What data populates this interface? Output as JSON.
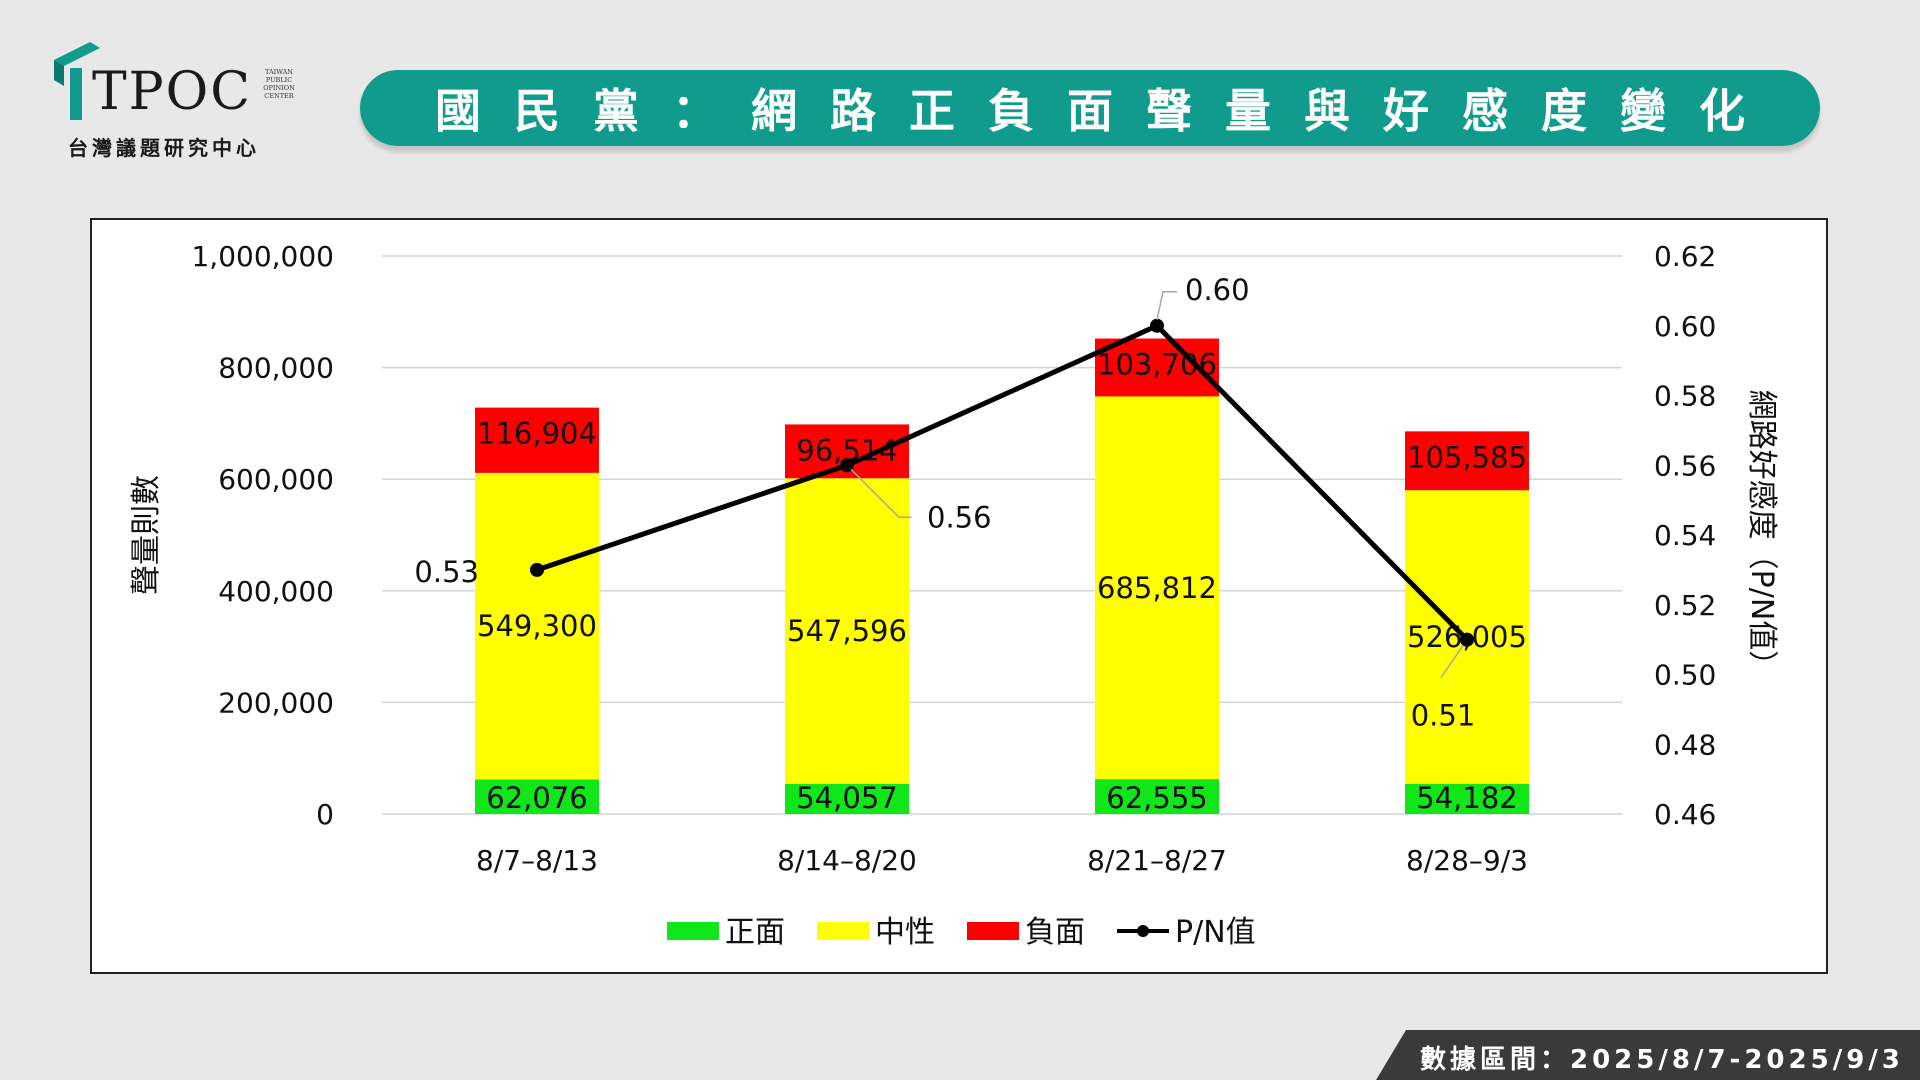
{
  "logo": {
    "name": "TPOC",
    "sub": "台灣議題研究中心",
    "small": [
      "TAIWAN",
      "PUBLIC",
      "OPINION",
      "CENTER"
    ]
  },
  "title": "國民黨：網路正負面聲量與好感度變化",
  "footer": "數據區間：2025/8/7-2025/9/3",
  "chart_data": {
    "type": "bar",
    "stacked": true,
    "categories": [
      "8/7–8/13",
      "8/14–8/20",
      "8/21–8/27",
      "8/28–9/3"
    ],
    "series": [
      {
        "name": "正面",
        "color": "#11e61b",
        "values": [
          62076,
          54057,
          62555,
          54182
        ],
        "labels": [
          "62,076",
          "54,057",
          "62,555",
          "54,182"
        ]
      },
      {
        "name": "中性",
        "color": "#ffff00",
        "values": [
          549300,
          547596,
          685812,
          526005
        ],
        "labels": [
          "549,300",
          "547,596",
          "685,812",
          "526,005"
        ]
      },
      {
        "name": "負面",
        "color": "#ff0000",
        "values": [
          116904,
          96514,
          103706,
          105585
        ],
        "labels": [
          "116,904",
          "96,514",
          "103,706",
          "105,585"
        ]
      }
    ],
    "line_series": {
      "name": "P/N值",
      "color": "#000000",
      "values": [
        0.53,
        0.56,
        0.6,
        0.51
      ],
      "labels": [
        "0.53",
        "0.56",
        "0.60",
        "0.51"
      ]
    },
    "ylabel": "聲量則數",
    "y2label": "網路好感度（P/N值）",
    "ylim": [
      0,
      1000000
    ],
    "yticks": [
      "0",
      "200,000",
      "400,000",
      "600,000",
      "800,000",
      "1,000,000"
    ],
    "y2lim": [
      0.46,
      0.62
    ],
    "y2ticks": [
      "0.46",
      "0.48",
      "0.50",
      "0.52",
      "0.54",
      "0.56",
      "0.58",
      "0.60",
      "0.62"
    ],
    "grid": true,
    "legend_position": "bottom"
  }
}
